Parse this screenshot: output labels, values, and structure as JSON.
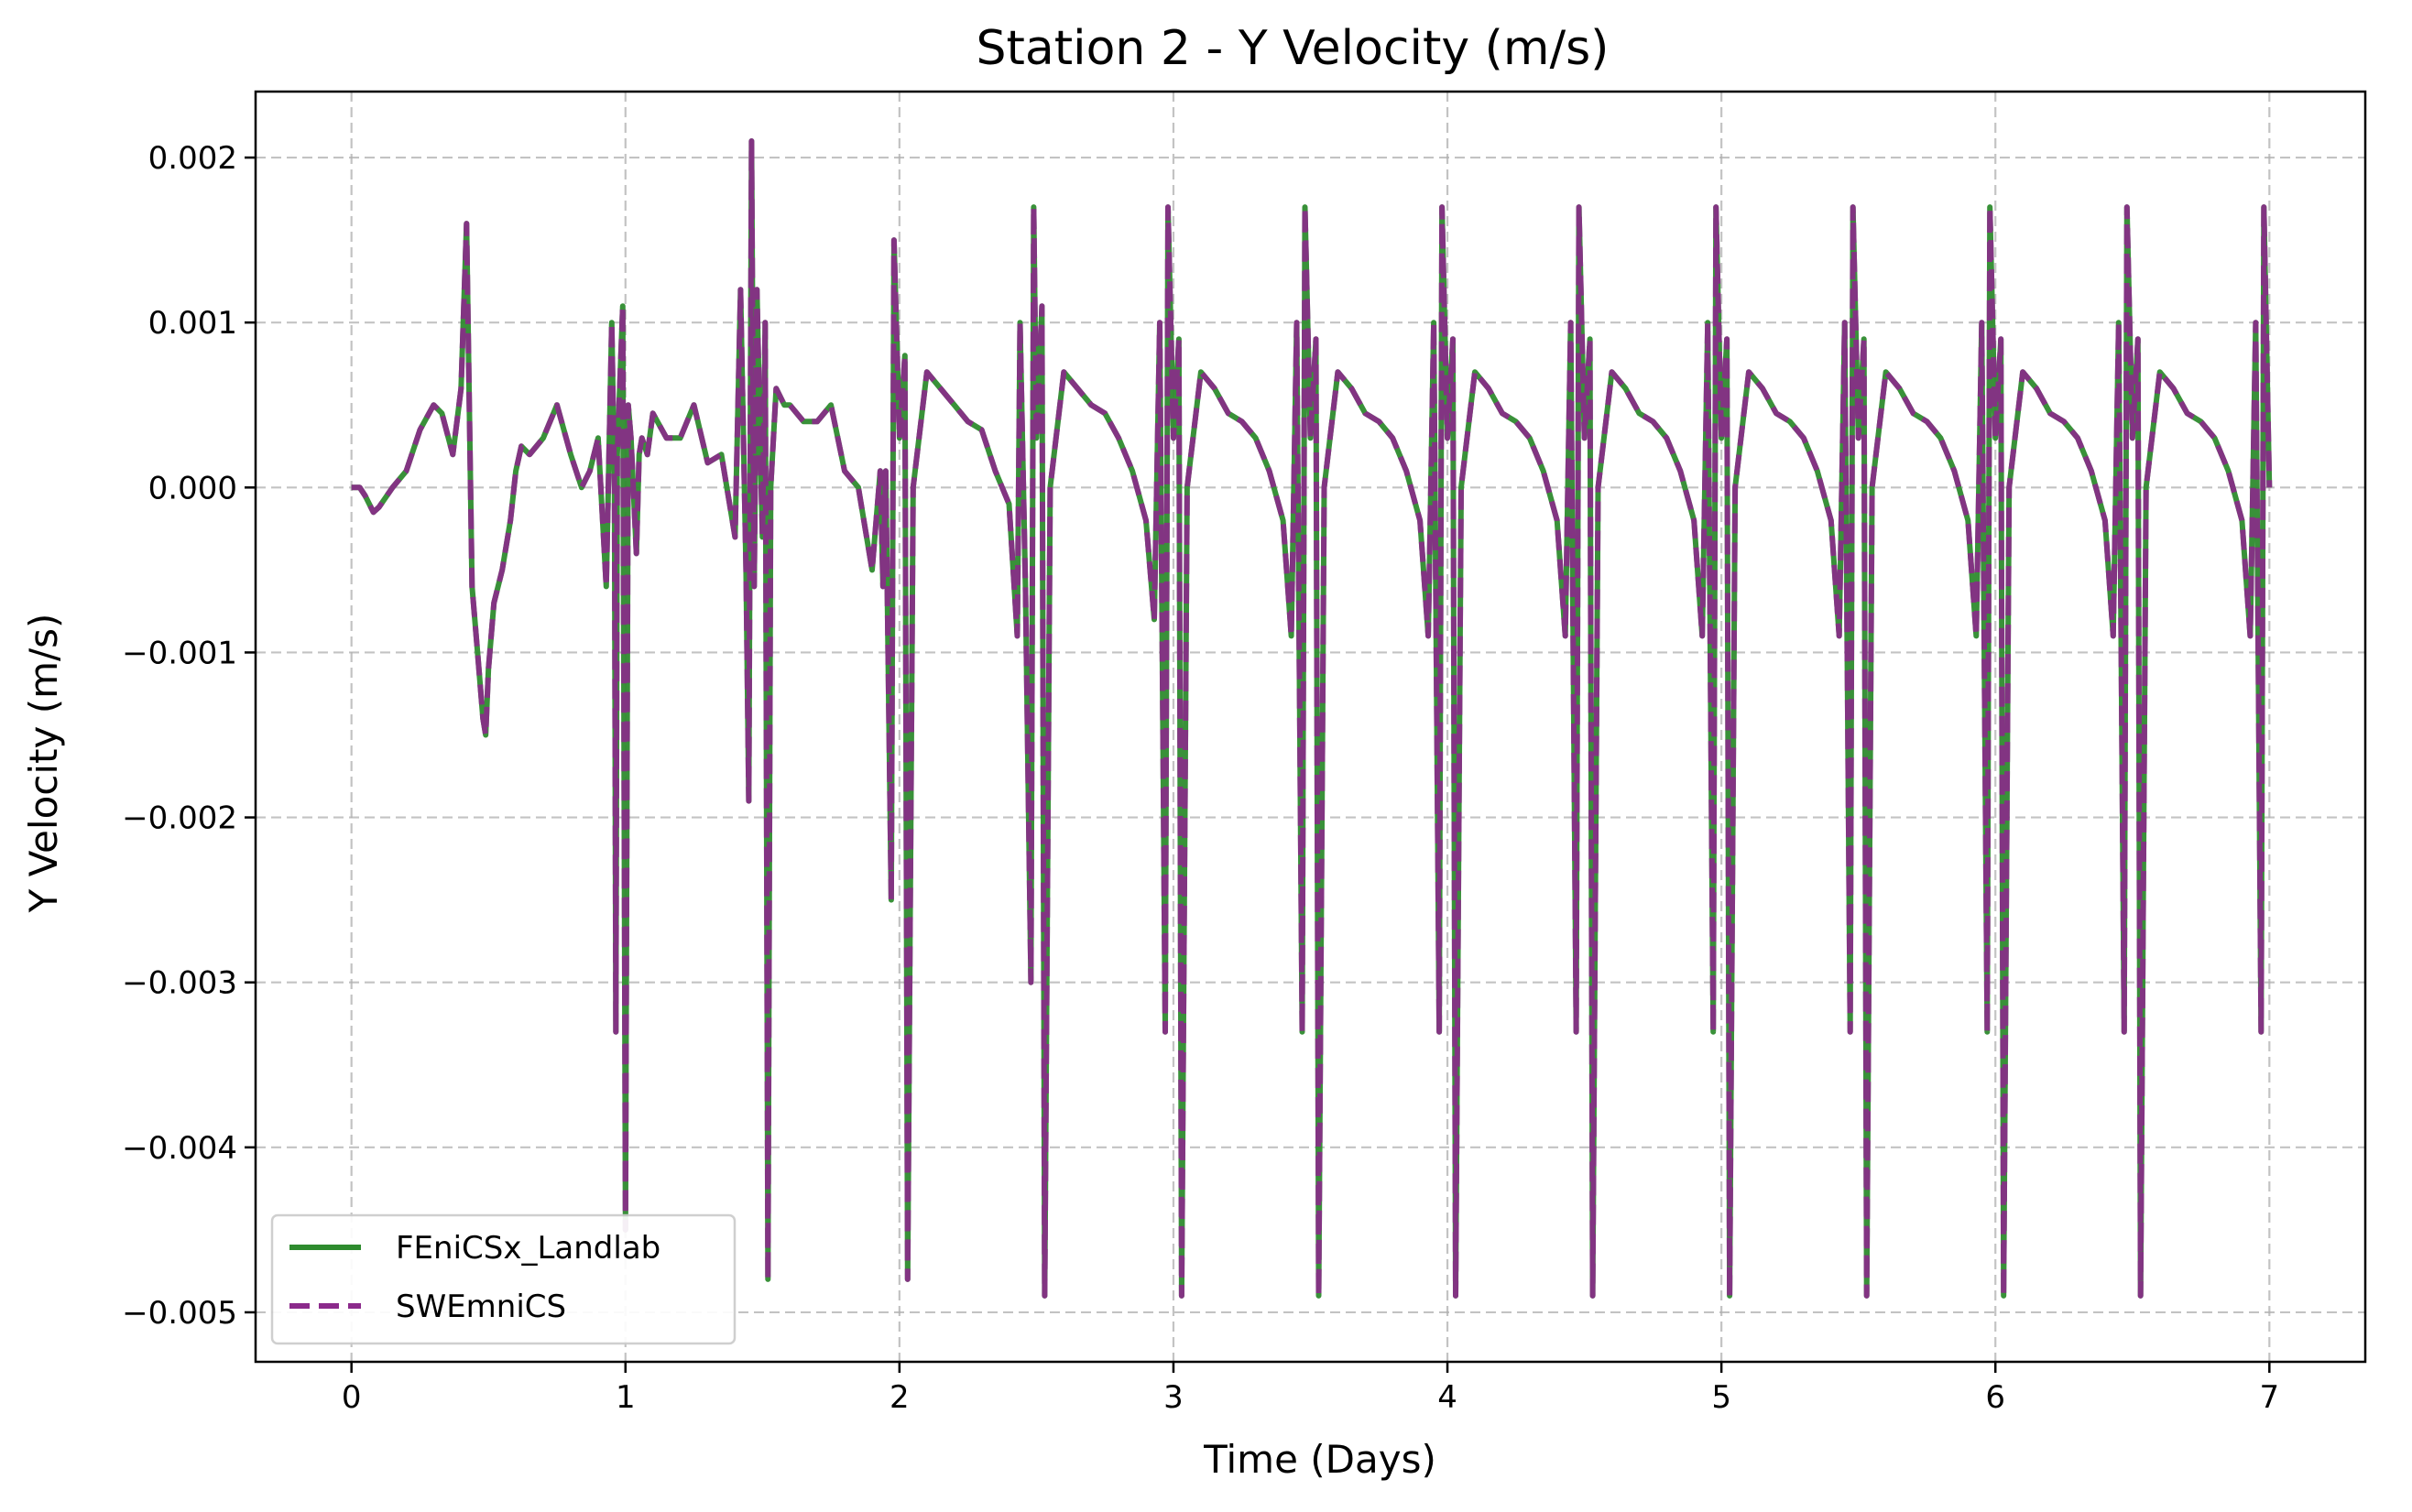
{
  "chart_data": {
    "type": "line",
    "title": "Station 2 - Y Velocity (m/s)",
    "xlabel": "Time (Days)",
    "ylabel": "Y Velocity (m/s)",
    "xlim": [
      -0.35,
      7.35
    ],
    "ylim": [
      -0.0053,
      0.0024
    ],
    "x_ticks": [
      0,
      1,
      2,
      3,
      4,
      5,
      6,
      7
    ],
    "x_tick_labels": [
      "0",
      "1",
      "2",
      "3",
      "4",
      "5",
      "6",
      "7"
    ],
    "y_ticks": [
      0.002,
      0.001,
      0.0,
      -0.001,
      -0.002,
      -0.003,
      -0.004,
      -0.005
    ],
    "y_tick_labels": [
      "0.002",
      "0.001",
      "0.000",
      "−0.001",
      "−0.002",
      "−0.003",
      "−0.004",
      "−0.005"
    ],
    "grid": true,
    "legend_position": "lower-left",
    "series": [
      {
        "name": "FEniCSx_Landlab",
        "color": "#2e8b2e",
        "style": "solid",
        "x": [
          0,
          0.03,
          0.05,
          0.08,
          0.1,
          0.15,
          0.2,
          0.25,
          0.3,
          0.33,
          0.37,
          0.4,
          0.42,
          0.43,
          0.44,
          0.46,
          0.48,
          0.49,
          0.5,
          0.52,
          0.55,
          0.58,
          0.6,
          0.62,
          0.65,
          0.7,
          0.75,
          0.8,
          0.84,
          0.87,
          0.9,
          0.93,
          0.95,
          0.96,
          0.965,
          0.97,
          0.99,
          1.0,
          1.01,
          1.02,
          1.04,
          1.05,
          1.06,
          1.08,
          1.1,
          1.15,
          1.2,
          1.25,
          1.3,
          1.35,
          1.4,
          1.42,
          1.44,
          1.45,
          1.46,
          1.47,
          1.48,
          1.49,
          1.5,
          1.51,
          1.52,
          1.53,
          1.55,
          1.58,
          1.6,
          1.65,
          1.7,
          1.75,
          1.8,
          1.85,
          1.9,
          1.93,
          1.94,
          1.95,
          1.97,
          1.98,
          2.0,
          2.02,
          2.03,
          2.05,
          2.1,
          2.15,
          2.2,
          2.25,
          2.3,
          2.35,
          2.4,
          2.43,
          2.44,
          2.46,
          2.48,
          2.49,
          2.5,
          2.52,
          2.53,
          2.55,
          2.6,
          2.65,
          2.7,
          2.75,
          2.8,
          2.85,
          2.9,
          2.93,
          2.95,
          2.97,
          2.98,
          3.0,
          3.02,
          3.03,
          3.05,
          3.1,
          3.15,
          3.2,
          3.25,
          3.3,
          3.35,
          3.4,
          3.43,
          3.45,
          3.47,
          3.48,
          3.5,
          3.52,
          3.53,
          3.55,
          3.6,
          3.65,
          3.7,
          3.75,
          3.8,
          3.85,
          3.9,
          3.93,
          3.95,
          3.97,
          3.98,
          4.0,
          4.02,
          4.03,
          4.05,
          4.1,
          4.15,
          4.2,
          4.25,
          4.3,
          4.35,
          4.4,
          4.43,
          4.45,
          4.47,
          4.48,
          4.5,
          4.52,
          4.53,
          4.55,
          4.6,
          4.65,
          4.7,
          4.75,
          4.8,
          4.85,
          4.9,
          4.93,
          4.95,
          4.97,
          4.98,
          5.0,
          5.02,
          5.03,
          5.05,
          5.1,
          5.15,
          5.2,
          5.25,
          5.3,
          5.35,
          5.4,
          5.43,
          5.45,
          5.47,
          5.48,
          5.5,
          5.52,
          5.53,
          5.55,
          5.6,
          5.65,
          5.7,
          5.75,
          5.8,
          5.85,
          5.9,
          5.93,
          5.95,
          5.97,
          5.98,
          6.0,
          6.02,
          6.03,
          6.05,
          6.1,
          6.15,
          6.2,
          6.25,
          6.3,
          6.35,
          6.4,
          6.43,
          6.45,
          6.47,
          6.48,
          6.5,
          6.52,
          6.53,
          6.55,
          6.6,
          6.65,
          6.7,
          6.75,
          6.8,
          6.85,
          6.9,
          6.93,
          6.95,
          6.97,
          6.98,
          7.0
        ],
        "y": [
          0.0,
          0.0,
          -5e-05,
          -0.00015,
          -0.00012,
          0.0,
          0.0001,
          0.00035,
          0.0005,
          0.00045,
          0.0002,
          0.0006,
          0.0016,
          0.0005,
          -0.0006,
          -0.001,
          -0.0014,
          -0.0015,
          -0.0011,
          -0.0007,
          -0.0005,
          -0.0002,
          0.0001,
          0.00025,
          0.0002,
          0.0003,
          0.0005,
          0.0002,
          0.0,
          0.0001,
          0.0003,
          -0.0006,
          0.001,
          0.0,
          -0.0033,
          0.0002,
          0.0011,
          -0.0045,
          0.0005,
          0.0003,
          -0.0004,
          0.0002,
          0.0003,
          0.0002,
          0.00045,
          0.0003,
          0.0003,
          0.0005,
          0.00015,
          0.0002,
          -0.0003,
          0.0012,
          -0.0005,
          -0.0019,
          0.0021,
          -0.0006,
          0.0012,
          0.0004,
          -0.0003,
          0.001,
          -0.0048,
          0.0,
          0.0006,
          0.0005,
          0.0005,
          0.0004,
          0.0004,
          0.0005,
          0.0001,
          0.0,
          -0.0005,
          0.0001,
          -0.0006,
          0.0001,
          -0.0025,
          0.0015,
          0.0003,
          0.0008,
          -0.0048,
          0.0,
          0.0007,
          0.0006,
          0.0005,
          0.0004,
          0.00035,
          0.0001,
          -0.0001,
          -0.0009,
          0.001,
          -0.0006,
          -0.003,
          0.0017,
          0.0003,
          0.0011,
          -0.0049,
          0.0,
          0.0007,
          0.0006,
          0.0005,
          0.00045,
          0.0003,
          0.0001,
          -0.0002,
          -0.0008,
          0.001,
          -0.0033,
          0.0017,
          0.0003,
          0.0009,
          -0.0049,
          0.0,
          0.0007,
          0.0006,
          0.00045,
          0.0004,
          0.0003,
          0.0001,
          -0.0002,
          -0.0009,
          0.001,
          -0.0033,
          0.0017,
          0.0003,
          0.0009,
          -0.0049,
          0.0,
          0.0007,
          0.0006,
          0.00045,
          0.0004,
          0.0003,
          0.0001,
          -0.0002,
          -0.0009,
          0.001,
          -0.0033,
          0.0017,
          0.0003,
          0.0009,
          -0.0049,
          0.0,
          0.0007,
          0.0006,
          0.00045,
          0.0004,
          0.0003,
          0.0001,
          -0.0002,
          -0.0009,
          0.001,
          -0.0033,
          0.0017,
          0.0003,
          0.0009,
          -0.0049,
          0.0,
          0.0007,
          0.0006,
          0.00045,
          0.0004,
          0.0003,
          0.0001,
          -0.0002,
          -0.0009,
          0.001,
          -0.0033,
          0.0017,
          0.0003,
          0.0009,
          -0.0049,
          0.0,
          0.0007,
          0.0006,
          0.00045,
          0.0004,
          0.0003,
          0.0001,
          -0.0002,
          -0.0009,
          0.001,
          -0.0033,
          0.0017,
          0.0003,
          0.0009,
          -0.0049,
          0.0,
          0.0007,
          0.0006,
          0.00045,
          0.0004,
          0.0003,
          0.0001,
          -0.0002,
          -0.0009,
          0.001,
          -0.0033,
          0.0017,
          0.0003,
          0.0009,
          -0.0049,
          0.0,
          0.0007,
          0.0006,
          0.00045,
          0.0004,
          0.0003,
          0.0001,
          -0.0002,
          -0.0009,
          0.001,
          -0.0033,
          0.0017,
          0.0003,
          0.0009,
          -0.0049,
          0.0,
          0.0007,
          0.0006,
          0.00045,
          0.0004,
          0.0003,
          0.0001,
          -0.0002,
          -0.0009,
          0.001,
          -0.0033,
          0.0017,
          0.0
        ]
      },
      {
        "name": "SWEmniCS",
        "color": "#8b2a8b",
        "style": "dashed",
        "same_as": "FEniCSx_Landlab"
      }
    ]
  }
}
